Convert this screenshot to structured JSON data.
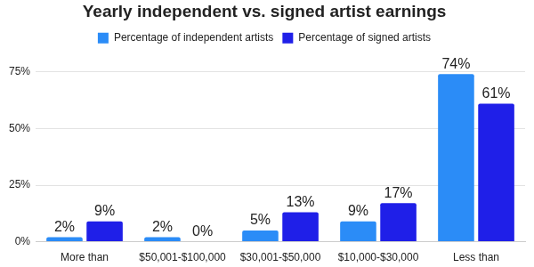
{
  "chart_data": {
    "type": "bar",
    "title": "Yearly independent vs. signed artist earnings",
    "categories": [
      "More than",
      "$50,001-$100,000",
      "$30,001-$50,000",
      "$10,000-$30,000",
      "Less than"
    ],
    "series": [
      {
        "name": "Percentage of independent artists",
        "color": "#2b8cf7",
        "values": [
          2,
          2,
          5,
          9,
          74
        ],
        "value_labels": [
          "2%",
          "2%",
          "5%",
          "9%",
          "74%"
        ]
      },
      {
        "name": "Percentage of signed artists",
        "color": "#1f1fe8",
        "values": [
          9,
          0,
          13,
          17,
          61
        ],
        "value_labels": [
          "9%",
          "0%",
          "13%",
          "17%",
          "61%"
        ]
      }
    ],
    "ylim": [
      0,
      75
    ],
    "yticks": [
      {
        "value": 0,
        "label": "0%"
      },
      {
        "value": 25,
        "label": "25%"
      },
      {
        "value": 50,
        "label": "50%"
      },
      {
        "value": 75,
        "label": "75%"
      }
    ],
    "grid": true,
    "legend": "top",
    "data_labels": true
  }
}
